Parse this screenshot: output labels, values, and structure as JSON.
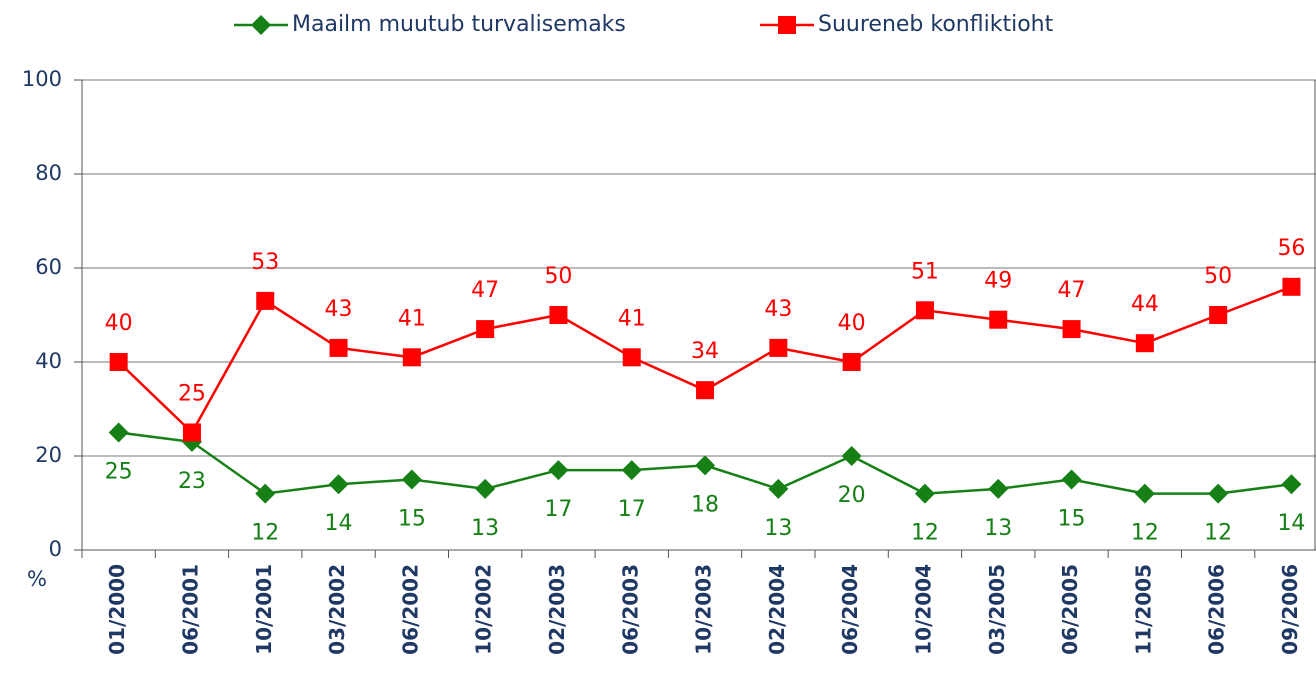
{
  "chart_data": {
    "type": "line",
    "y_axis_label": "%",
    "categories": [
      "01/2000",
      "06/2001",
      "10/2001",
      "03/2002",
      "06/2002",
      "10/2002",
      "02/2003",
      "06/2003",
      "10/2003",
      "02/2004",
      "06/2004",
      "10/2004",
      "03/2005",
      "06/2005",
      "11/2005",
      "06/2006",
      "09/2006"
    ],
    "series": [
      {
        "name": "Maailm muutub turvalisemaks",
        "color": "#168016",
        "marker": "diamond",
        "values": [
          25,
          23,
          12,
          14,
          15,
          13,
          17,
          17,
          18,
          13,
          20,
          12,
          13,
          15,
          12,
          12,
          14
        ]
      },
      {
        "name": "Suureneb konfliktioht",
        "color": "#ff0000",
        "marker": "square",
        "values": [
          40,
          25,
          53,
          43,
          41,
          47,
          50,
          41,
          34,
          43,
          40,
          51,
          49,
          47,
          44,
          50,
          56
        ]
      }
    ],
    "ylim": [
      0,
      100
    ],
    "yticks": [
      0,
      20,
      40,
      60,
      80,
      100
    ],
    "grid": true,
    "legend": "top"
  }
}
